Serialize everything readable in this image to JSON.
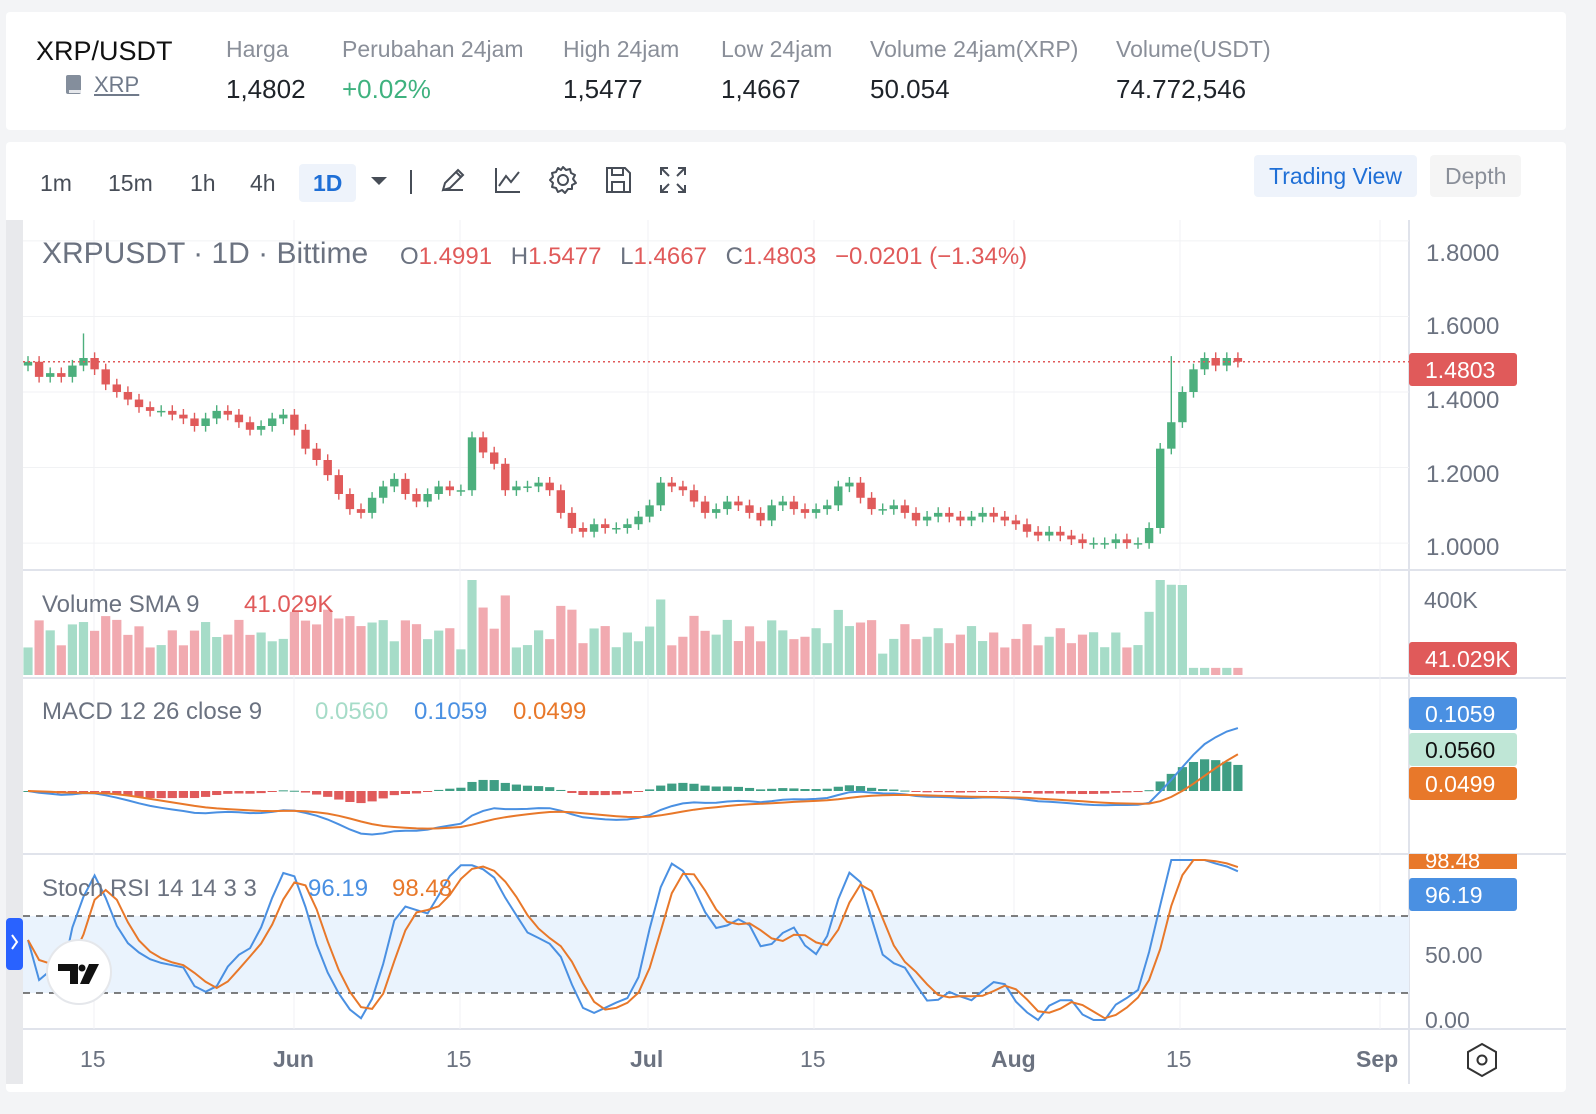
{
  "header": {
    "pair": "XRP/USDT",
    "coin_link": "XRP",
    "stats": [
      {
        "label": "Harga",
        "value": "1,4802"
      },
      {
        "label": "Perubahan 24jam",
        "value": "+0.02%"
      },
      {
        "label": "High 24jam",
        "value": "1,5477"
      },
      {
        "label": "Low 24jam",
        "value": "1,4667"
      },
      {
        "label": "Volume 24jam(XRP)",
        "value": "50.054"
      },
      {
        "label": "Volume(USDT)",
        "value": "74.772,546"
      }
    ]
  },
  "colors": {
    "up": "#4caf7d",
    "down": "#e05a5a",
    "accent": "#1f6fd6",
    "macd": "#4a90e2",
    "signal": "#e8782a",
    "positive": "#3fb27f"
  },
  "toolbar": {
    "timeframes": [
      "1m",
      "15m",
      "1h",
      "4h",
      "1D"
    ],
    "active_timeframe": "1D",
    "icons": [
      "chevron-down-icon",
      "pencil-icon",
      "indicator-icon",
      "gear-icon",
      "save-icon",
      "fullscreen-icon"
    ],
    "trading_view_label": "Trading View",
    "depth_label": "Depth"
  },
  "legend": {
    "title": "XRPUSDT · 1D · Bittime",
    "o_label": "O",
    "o": "1.4991",
    "h_label": "H",
    "h": "1.5477",
    "l_label": "L",
    "l": "1.4667",
    "c_label": "C",
    "c": "1.4803",
    "change": "−0.0201 (−1.34%)"
  },
  "price_axis": {
    "ticks": [
      "1.8000",
      "1.6000",
      "1.4000",
      "1.2000",
      "1.0000"
    ],
    "last_price": "1.4803"
  },
  "volume_panel": {
    "label": "Volume SMA 9",
    "value": "41.029K",
    "axis_tick": "400K",
    "badge": "41.029K"
  },
  "macd_panel": {
    "label": "MACD 12 26 close 9",
    "hist": "0.0560",
    "macd": "0.1059",
    "signal": "0.0499"
  },
  "stoch_panel": {
    "label": "Stoch RSI 14 14 3 3",
    "k": "96.19",
    "d": "98.48",
    "axis_ticks": [
      "50.00",
      "0.00"
    ],
    "upper_band": 80,
    "lower_band": 20
  },
  "time_axis": {
    "labels": [
      "15",
      "Jun",
      "15",
      "Jul",
      "15",
      "Aug",
      "15",
      "Sep"
    ]
  },
  "chart_data": {
    "type": "candlestick",
    "title": "XRPUSDT · 1D · Bittime",
    "price_range": [
      0.95,
      1.85
    ],
    "closes": [
      1.48,
      1.44,
      1.45,
      1.44,
      1.47,
      1.49,
      1.46,
      1.42,
      1.4,
      1.38,
      1.36,
      1.35,
      1.35,
      1.34,
      1.33,
      1.31,
      1.33,
      1.35,
      1.34,
      1.32,
      1.3,
      1.31,
      1.33,
      1.34,
      1.3,
      1.25,
      1.22,
      1.18,
      1.13,
      1.09,
      1.08,
      1.12,
      1.15,
      1.17,
      1.13,
      1.11,
      1.13,
      1.15,
      1.14,
      1.14,
      1.28,
      1.24,
      1.21,
      1.14,
      1.15,
      1.15,
      1.16,
      1.14,
      1.08,
      1.04,
      1.03,
      1.05,
      1.04,
      1.04,
      1.05,
      1.07,
      1.1,
      1.16,
      1.15,
      1.14,
      1.11,
      1.08,
      1.09,
      1.11,
      1.1,
      1.08,
      1.06,
      1.1,
      1.11,
      1.09,
      1.08,
      1.09,
      1.1,
      1.15,
      1.16,
      1.12,
      1.09,
      1.09,
      1.1,
      1.08,
      1.06,
      1.07,
      1.08,
      1.07,
      1.06,
      1.07,
      1.08,
      1.07,
      1.06,
      1.05,
      1.03,
      1.02,
      1.03,
      1.02,
      1.01,
      1.0,
      1.0,
      1.0,
      1.01,
      1.0,
      1.0,
      1.04,
      1.25,
      1.32,
      1.4,
      1.46,
      1.49,
      1.47,
      1.49,
      1.48
    ],
    "volume_max": 400000,
    "volume_sma9": 41029,
    "macd": {
      "macd": 0.1059,
      "signal": 0.0499,
      "hist": 0.056
    },
    "stoch_rsi": {
      "k": 96.19,
      "d": 98.48,
      "range": [
        0,
        100
      ]
    },
    "x_labels": [
      "15",
      "Jun",
      "15",
      "Jul",
      "15",
      "Aug",
      "15",
      "Sep"
    ]
  }
}
